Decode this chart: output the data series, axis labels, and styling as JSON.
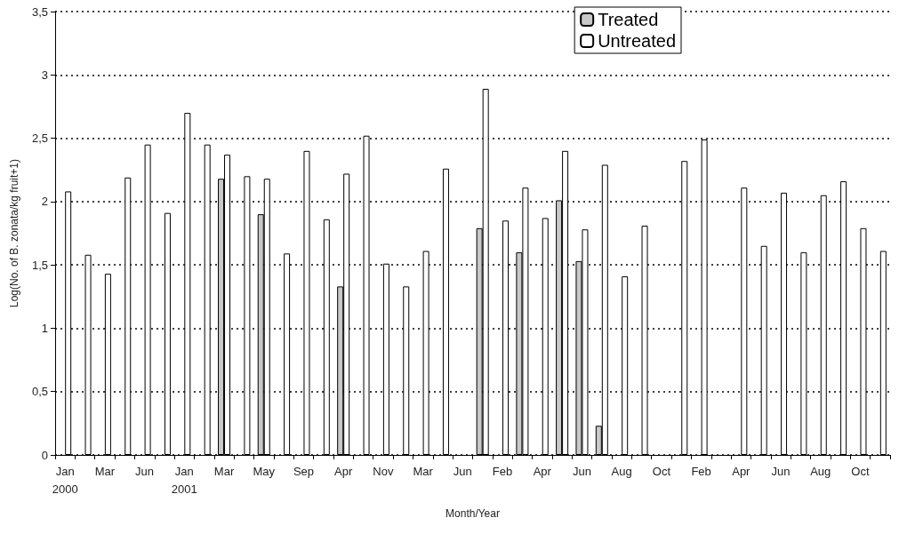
{
  "chart_data": {
    "type": "bar",
    "xlabel": "Month/Year",
    "ylabel": "Log(No. of B. zonata/kg fruit+1)",
    "categories": [
      "Jan\n2000",
      null,
      "Mar",
      null,
      "Jun",
      null,
      "Jan\n2001",
      null,
      "Mar",
      null,
      "May",
      null,
      "Sep",
      null,
      "Apr",
      null,
      "Nov",
      null,
      "Mar",
      null,
      "Jun",
      null,
      "Feb",
      null,
      "Apr",
      null,
      "Jun",
      null,
      "Aug",
      null,
      "Oct",
      null,
      "Feb",
      null,
      "Apr",
      null,
      "Jun",
      null,
      "Aug",
      null,
      "Oct",
      null
    ],
    "series": [
      {
        "name": "Treated",
        "color": "#c8c8c8",
        "values": [
          null,
          null,
          null,
          null,
          null,
          null,
          null,
          null,
          2.18,
          null,
          1.9,
          null,
          null,
          null,
          1.33,
          null,
          null,
          null,
          null,
          null,
          null,
          1.79,
          null,
          1.6,
          null,
          2.01,
          1.53,
          0.23,
          null,
          null,
          null,
          null,
          null,
          null,
          null,
          null,
          null,
          null,
          null,
          null,
          null,
          null
        ]
      },
      {
        "name": "Untreated",
        "color": "#ffffff",
        "values": [
          2.08,
          1.58,
          1.43,
          2.19,
          2.45,
          1.91,
          2.7,
          2.45,
          2.37,
          2.2,
          2.18,
          1.59,
          2.4,
          1.86,
          2.22,
          2.52,
          1.51,
          1.33,
          1.61,
          2.26,
          null,
          2.89,
          1.85,
          2.11,
          1.87,
          2.4,
          1.78,
          2.29,
          1.41,
          1.81,
          null,
          2.32,
          2.49,
          null,
          2.11,
          1.65,
          2.07,
          1.6,
          2.05,
          2.16,
          1.79,
          1.61
        ]
      }
    ],
    "ylim": [
      0,
      3.5
    ],
    "yticks": [
      0,
      {
        "value": 0.5,
        "label": "0,5"
      },
      1,
      {
        "value": 1.5,
        "label": "1,5"
      },
      2,
      {
        "value": 2.5,
        "label": "2,5"
      },
      3,
      {
        "value": 3.5,
        "label": "3,5"
      }
    ],
    "grid": "y",
    "legend": "top right"
  }
}
